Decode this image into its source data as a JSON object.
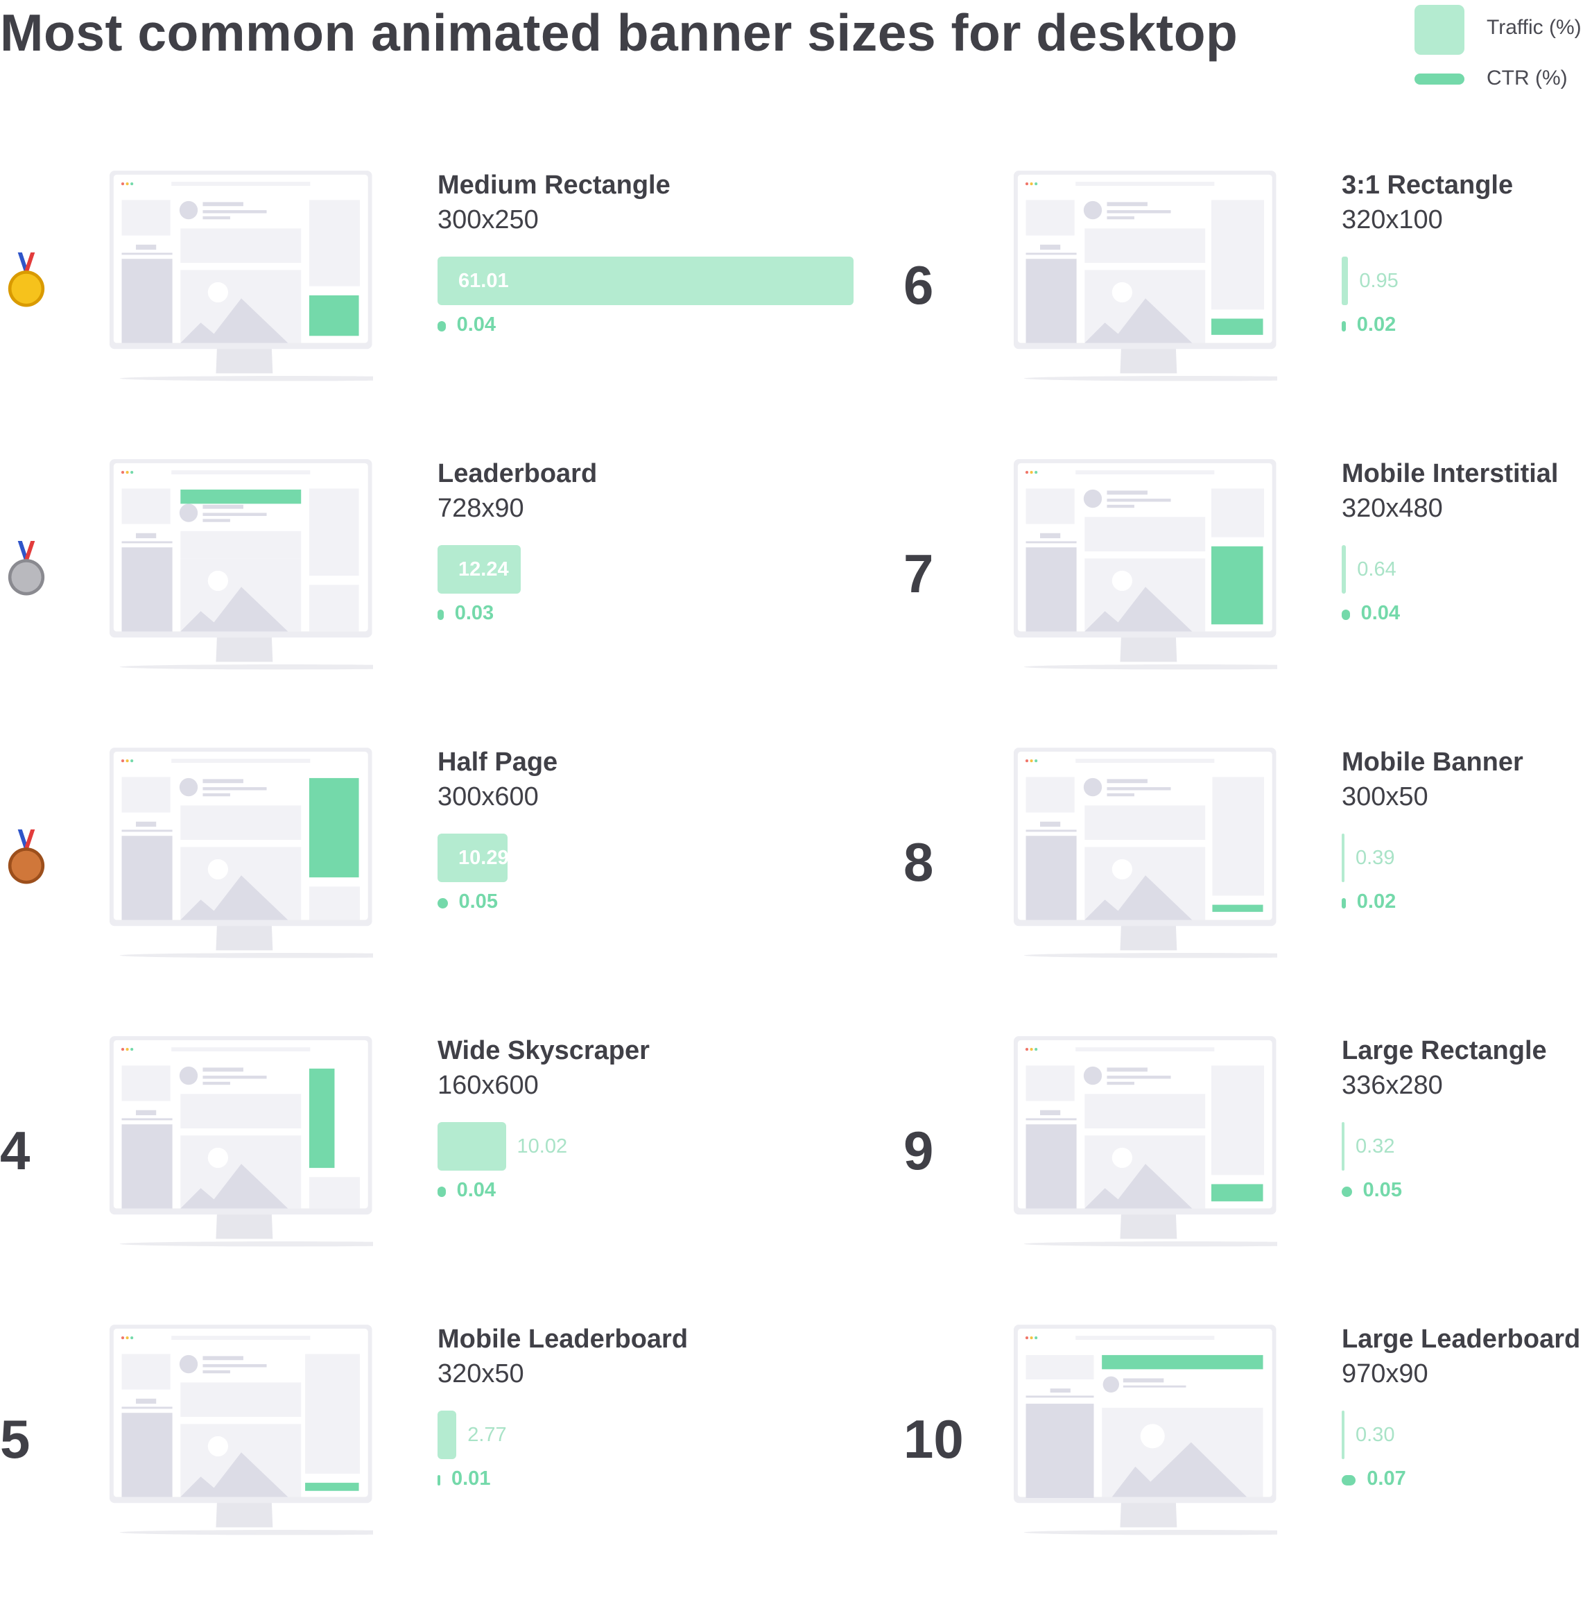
{
  "title": "Most common animated banner sizes for desktop",
  "legend": [
    {
      "label": "Traffic (%)",
      "color": "#b4ebd0"
    },
    {
      "label": "CTR (%)",
      "color": "#74d9aa"
    }
  ],
  "colors": {
    "traffic": "#b4ebd0",
    "ctr": "#74d9aa",
    "text": "#404047"
  },
  "chart_data": {
    "type": "bar",
    "title": "Most common animated banner sizes for desktop",
    "series": [
      {
        "name": "Traffic (%)",
        "values": [
          61.01,
          12.24,
          10.29,
          10.02,
          2.77,
          0.95,
          0.64,
          0.39,
          0.32,
          0.3
        ]
      },
      {
        "name": "CTR (%)",
        "values": [
          0.04,
          0.03,
          0.05,
          0.04,
          0.01,
          0.02,
          0.04,
          0.02,
          0.05,
          0.07
        ]
      }
    ],
    "categories": [
      "Medium Rectangle",
      "Leaderboard",
      "Half Page",
      "Wide Skyscraper",
      "Mobile Leaderboard",
      "3:1 Rectangle",
      "Mobile Interstitial",
      "Mobile Banner",
      "Large Rectangle",
      "Large Leaderboard"
    ],
    "legend": "top-right"
  },
  "items": [
    {
      "rank": "1",
      "medal": "gold-medal",
      "name": "Medium Rectangle",
      "size": "300x250",
      "traffic": 61.01,
      "traffic_label": "61.01",
      "ctr": 0.04,
      "ctr_label": "0.04"
    },
    {
      "rank": "2",
      "medal": "silver-medal",
      "name": "Leaderboard",
      "size": "728x90",
      "traffic": 12.24,
      "traffic_label": "12.24",
      "ctr": 0.03,
      "ctr_label": "0.03"
    },
    {
      "rank": "3",
      "medal": "bronze-medal",
      "name": "Half Page",
      "size": "300x600",
      "traffic": 10.29,
      "traffic_label": "10.29",
      "ctr": 0.05,
      "ctr_label": "0.05"
    },
    {
      "rank": "4",
      "name": "Wide Skyscraper",
      "size": "160x600",
      "traffic": 10.02,
      "traffic_label": "10.02",
      "ctr": 0.04,
      "ctr_label": "0.04"
    },
    {
      "rank": "5",
      "name": "Mobile Leaderboard",
      "size": "320x50",
      "traffic": 2.77,
      "traffic_label": "2.77",
      "ctr": 0.01,
      "ctr_label": "0.01"
    },
    {
      "rank": "6",
      "name": "3:1 Rectangle",
      "size": "320x100",
      "traffic": 0.95,
      "traffic_label": "0.95",
      "ctr": 0.02,
      "ctr_label": "0.02"
    },
    {
      "rank": "7",
      "name": "Mobile Interstitial",
      "size": "320x480",
      "traffic": 0.64,
      "traffic_label": "0.64",
      "ctr": 0.04,
      "ctr_label": "0.04"
    },
    {
      "rank": "8",
      "name": "Mobile Banner",
      "size": "300x50",
      "traffic": 0.39,
      "traffic_label": "0.39",
      "ctr": 0.02,
      "ctr_label": "0.02"
    },
    {
      "rank": "9",
      "name": "Large Rectangle",
      "size": "336x280",
      "traffic": 0.32,
      "traffic_label": "0.32",
      "ctr": 0.05,
      "ctr_label": "0.05"
    },
    {
      "rank": "10",
      "name": "Large Leaderboard",
      "size": "970x90",
      "traffic": 0.3,
      "traffic_label": "0.30",
      "ctr": 0.07,
      "ctr_label": "0.07"
    }
  ]
}
